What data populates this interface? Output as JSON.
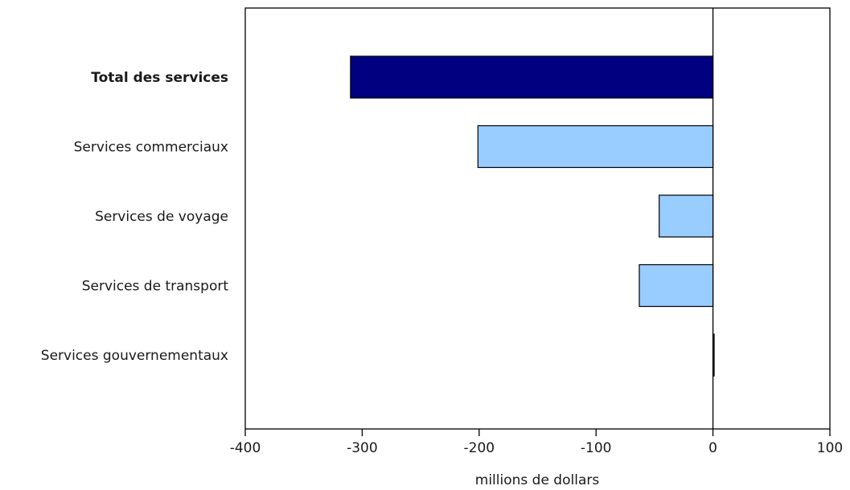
{
  "chart_data": {
    "type": "bar",
    "orientation": "horizontal",
    "categories": [
      "Total des services",
      "Services commerciaux",
      "Services de voyage",
      "Services de transport",
      "Services gouvernementaux"
    ],
    "values": [
      -310,
      -201,
      -46,
      -63,
      1
    ],
    "emphasized_category": "Total des services",
    "xlabel": "millions de dollars",
    "xlim": [
      -400,
      100
    ],
    "xticks": [
      -400,
      -300,
      -200,
      -100,
      0,
      100
    ],
    "xtick_labels": [
      "-400",
      "-300",
      "-200",
      "-100",
      "0",
      "100"
    ],
    "grid": false,
    "legend": "none",
    "colors": {
      "total_bar": "#000080",
      "component_bar": "#99ccff",
      "bar_stroke": "#000000",
      "axis": "#000000"
    }
  }
}
